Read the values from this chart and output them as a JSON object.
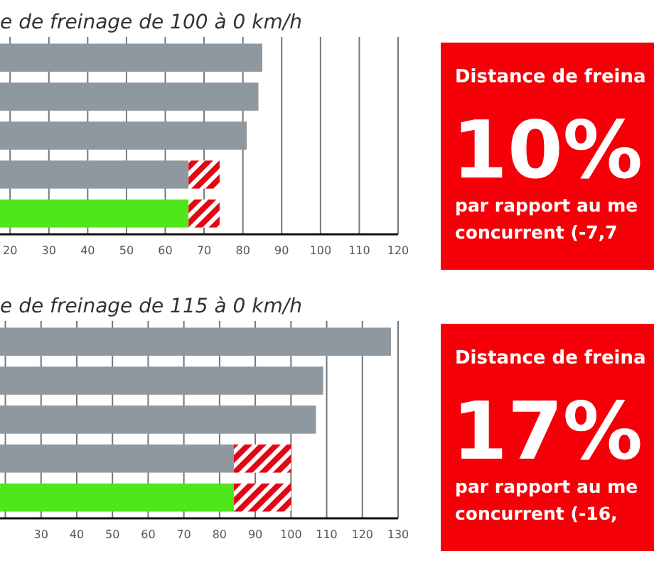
{
  "chart_data": [
    {
      "type": "bar",
      "orientation": "horizontal",
      "title": "e de freinage de 100 à 0 km/h",
      "categories": [
        null,
        null,
        null,
        null,
        null
      ],
      "xlim": [
        17.4,
        120
      ],
      "xticks": [
        20,
        30,
        40,
        50,
        60,
        70,
        80,
        90,
        100,
        110,
        120
      ],
      "grid": "x",
      "series": [
        {
          "color": "#8f989f",
          "values": [
            85,
            84,
            81,
            66,
            null
          ]
        },
        {
          "color": "#4fe61a",
          "values": [
            null,
            null,
            null,
            null,
            66
          ]
        },
        {
          "color": "#e30613",
          "base": [
            null,
            null,
            null,
            66,
            66
          ],
          "values": [
            null,
            null,
            null,
            8,
            8
          ]
        }
      ]
    },
    {
      "type": "other",
      "title": "Distance de freina",
      "annotations": [
        "10%",
        "par rapport au me",
        "concurrent (-7,7"
      ]
    },
    {
      "type": "bar",
      "orientation": "horizontal",
      "title": "e de freinage de 115 à 0 km/h",
      "categories": [
        null,
        null,
        null,
        null,
        null
      ],
      "xlim": [
        18.5,
        130
      ],
      "xticks": [
        {
          "value": 20,
          "label": null
        },
        30,
        40,
        50,
        60,
        70,
        80,
        90,
        100,
        110,
        120,
        130
      ],
      "grid": "x",
      "series": [
        {
          "color": "#8f989f",
          "values": [
            128,
            109,
            107,
            84,
            null
          ]
        },
        {
          "color": "#4fe61a",
          "values": [
            null,
            null,
            null,
            null,
            84
          ]
        },
        {
          "color": "#e30613",
          "base": [
            null,
            null,
            null,
            84,
            84
          ],
          "values": [
            null,
            null,
            null,
            16,
            16
          ]
        }
      ]
    },
    {
      "type": "other",
      "title": "Distance de freina",
      "annotations": [
        "17%",
        "par rapport au me",
        "concurrent (-16,"
      ]
    }
  ]
}
